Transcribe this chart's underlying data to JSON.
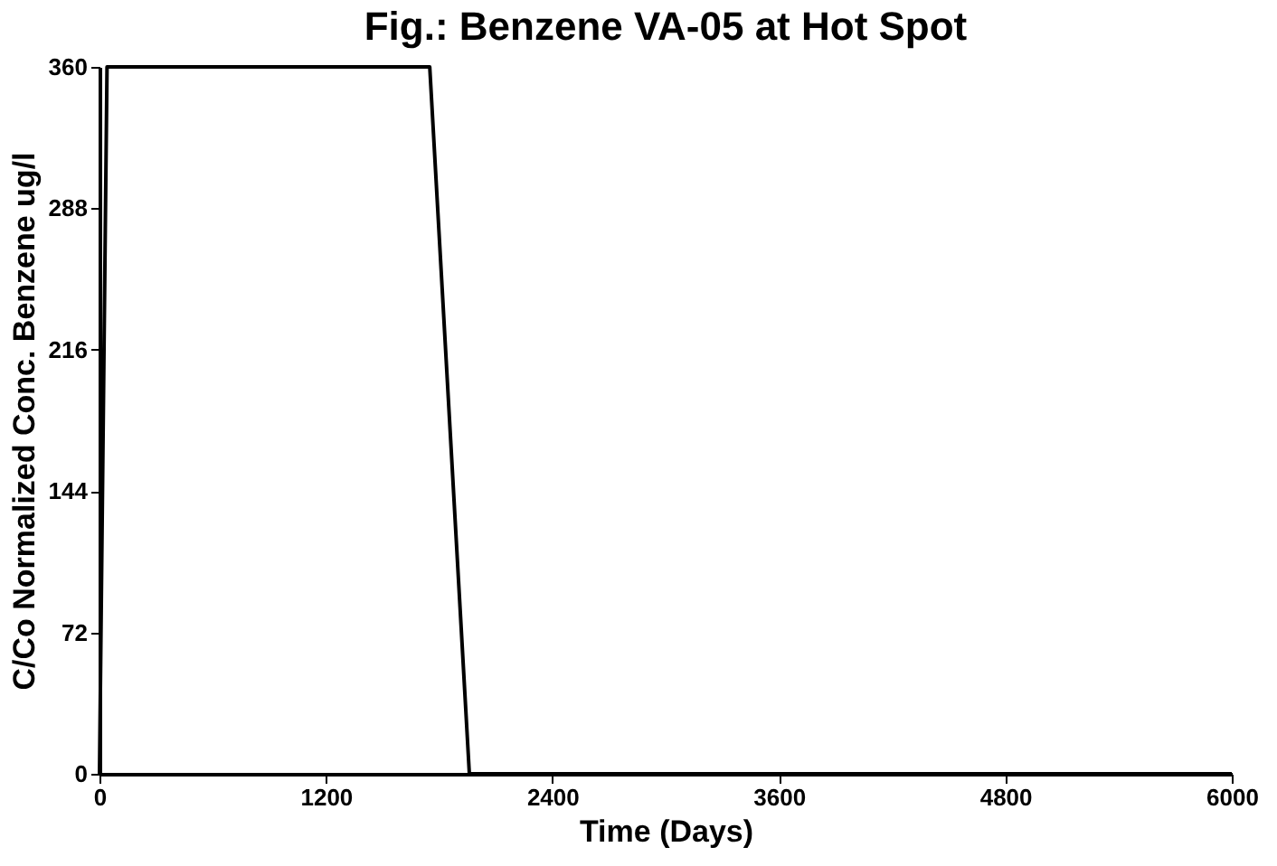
{
  "chart_data": {
    "type": "line",
    "title": "Fig.: Benzene VA-05 at Hot Spot",
    "xlabel": "Time (Days)",
    "ylabel": "C/Co Normalized Conc. Benzene ug/l",
    "series": [
      {
        "color": "#000000",
        "x": [
          0,
          40,
          1750,
          1960,
          6000
        ],
        "values": [
          0,
          360,
          360,
          0,
          0
        ]
      }
    ],
    "xlim": [
      0,
      6000
    ],
    "xticks": [
      0,
      1200,
      2400,
      3600,
      4800,
      6000
    ],
    "ylim": [
      0,
      360
    ],
    "yticks": [
      0,
      72,
      144,
      216,
      288,
      360
    ],
    "grid": false,
    "marker": "none",
    "line_style": "solid"
  }
}
